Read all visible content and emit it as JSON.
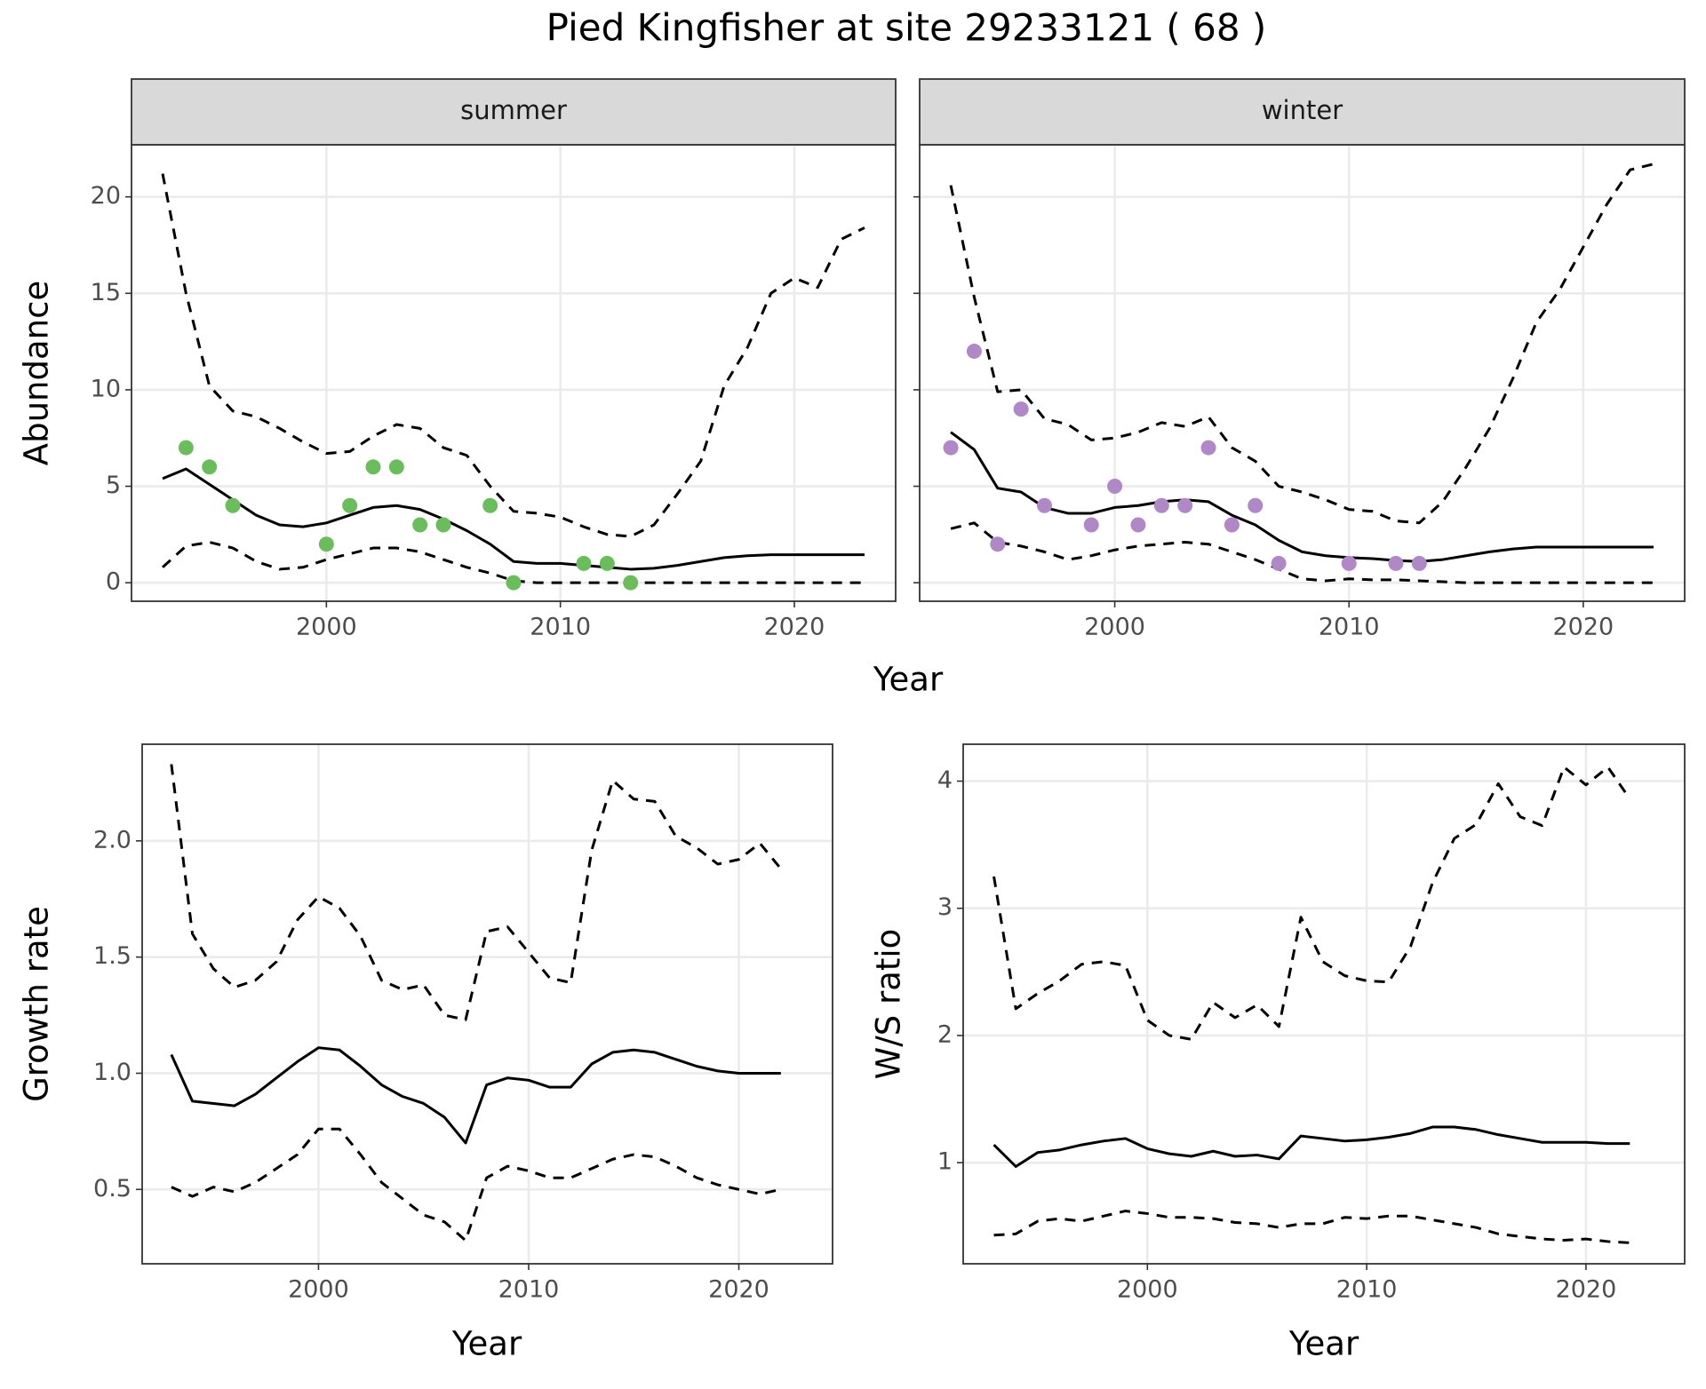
{
  "title": "Pied Kingfisher at site 29233121 ( 68 )",
  "chart_data": [
    {
      "type": "line",
      "facet": "summer",
      "xlabel": "Year",
      "ylabel": "Abundance",
      "x": [
        1993,
        1994,
        1995,
        1996,
        1997,
        1998,
        1999,
        2000,
        2001,
        2002,
        2003,
        2004,
        2005,
        2006,
        2007,
        2008,
        2009,
        2010,
        2011,
        2012,
        2013,
        2014,
        2015,
        2016,
        2017,
        2018,
        2019,
        2020,
        2021,
        2022,
        2023
      ],
      "xlim": [
        1991.67,
        2024.33
      ],
      "ylim": [
        -0.96,
        22.7
      ],
      "xticks": [
        2000,
        2010,
        2020
      ],
      "yticks": [
        0,
        5,
        10,
        15,
        20
      ],
      "grid": true,
      "series": [
        {
          "style": "dashed",
          "color": "#000000",
          "values": [
            21.2,
            15,
            10.2,
            8.9,
            8.6,
            8.0,
            7.3,
            6.7,
            6.8,
            7.6,
            8.2,
            8.0,
            7.0,
            6.6,
            5.0,
            3.7,
            3.6,
            3.4,
            2.9,
            2.5,
            2.4,
            3.0,
            4.6,
            6.3,
            10.2,
            12.2,
            15.0,
            15.8,
            15.3,
            17.8,
            18.4
          ]
        },
        {
          "style": "solid",
          "color": "#000000",
          "values": [
            5.4,
            5.9,
            5.1,
            4.3,
            3.5,
            3.0,
            2.9,
            3.1,
            3.5,
            3.9,
            4.0,
            3.8,
            3.3,
            2.7,
            2.0,
            1.1,
            1.0,
            1.0,
            0.9,
            0.8,
            0.7,
            0.75,
            0.9,
            1.1,
            1.3,
            1.4,
            1.45,
            1.45,
            1.45,
            1.45,
            1.45
          ]
        },
        {
          "style": "dashed",
          "color": "#000000",
          "values": [
            0.8,
            1.9,
            2.1,
            1.8,
            1.1,
            0.7,
            0.8,
            1.2,
            1.5,
            1.8,
            1.8,
            1.6,
            1.2,
            0.8,
            0.5,
            0.1,
            0,
            0,
            0,
            0,
            0,
            0,
            0,
            0,
            0,
            0,
            0,
            0,
            0,
            0,
            0
          ]
        },
        {
          "style": "point",
          "color": "#6abd5b",
          "x": [
            1994,
            1995,
            1996,
            2000,
            2001,
            2002,
            2003,
            2004,
            2005,
            2007,
            2008,
            2011,
            2012,
            2013
          ],
          "values": [
            7,
            6,
            4,
            2,
            4,
            6,
            6,
            3,
            3,
            4,
            0,
            1,
            1,
            0
          ]
        }
      ]
    },
    {
      "type": "line",
      "facet": "winter",
      "x": [
        1993,
        1994,
        1995,
        1996,
        1997,
        1998,
        1999,
        2000,
        2001,
        2002,
        2003,
        2004,
        2005,
        2006,
        2007,
        2008,
        2009,
        2010,
        2011,
        2012,
        2013,
        2014,
        2015,
        2016,
        2017,
        2018,
        2019,
        2020,
        2021,
        2022,
        2023
      ],
      "xlim": [
        1991.67,
        2024.33
      ],
      "ylim": [
        -0.96,
        22.7
      ],
      "xticks": [
        2000,
        2010,
        2020
      ],
      "yticks": [
        0,
        5,
        10,
        15,
        20
      ],
      "ytick_labels": false,
      "grid": true,
      "series": [
        {
          "style": "dashed",
          "color": "#000000",
          "values": [
            20.6,
            14.8,
            9.9,
            10.0,
            8.5,
            8.2,
            7.4,
            7.5,
            7.8,
            8.3,
            8.1,
            8.6,
            7.0,
            6.3,
            5.0,
            4.7,
            4.3,
            3.8,
            3.7,
            3.2,
            3.1,
            4.2,
            6.0,
            8.0,
            10.6,
            13.5,
            15.2,
            17.4,
            19.6,
            21.4,
            21.7
          ]
        },
        {
          "style": "solid",
          "color": "#000000",
          "values": [
            7.8,
            6.9,
            4.9,
            4.7,
            3.9,
            3.6,
            3.6,
            3.9,
            4.0,
            4.2,
            4.3,
            4.2,
            3.5,
            3.0,
            2.2,
            1.6,
            1.4,
            1.3,
            1.25,
            1.15,
            1.1,
            1.2,
            1.4,
            1.6,
            1.75,
            1.85,
            1.85,
            1.85,
            1.85,
            1.85,
            1.85
          ]
        },
        {
          "style": "dashed",
          "color": "#000000",
          "values": [
            2.8,
            3.1,
            2.1,
            1.9,
            1.6,
            1.2,
            1.4,
            1.7,
            1.9,
            2.0,
            2.1,
            2.0,
            1.6,
            1.2,
            0.7,
            0.2,
            0.1,
            0.2,
            0.15,
            0.15,
            0.1,
            0.05,
            0,
            0,
            0,
            0,
            0,
            0,
            0,
            0,
            0
          ]
        },
        {
          "style": "point",
          "color": "#b088c8",
          "x": [
            1993,
            1994,
            1995,
            1996,
            1997,
            1999,
            2000,
            2001,
            2002,
            2003,
            2004,
            2005,
            2006,
            2007,
            2010,
            2012,
            2013
          ],
          "values": [
            7,
            12,
            2,
            9,
            4,
            3,
            5,
            3,
            4,
            4,
            7,
            3,
            4,
            1,
            1,
            1,
            1
          ]
        }
      ]
    },
    {
      "type": "line",
      "xlabel": "Year",
      "ylabel": "Growth rate",
      "x": [
        1993,
        1994,
        1995,
        1996,
        1997,
        1998,
        1999,
        2000,
        2001,
        2002,
        2003,
        2004,
        2005,
        2006,
        2007,
        2008,
        2009,
        2010,
        2011,
        2012,
        2013,
        2014,
        2015,
        2016,
        2017,
        2018,
        2019,
        2020,
        2021,
        2022
      ],
      "xlim": [
        1991.61,
        2024.46
      ],
      "ylim": [
        0.18,
        2.416
      ],
      "xticks": [
        2000,
        2010,
        2020
      ],
      "yticks": [
        0.5,
        {
          "value": 1,
          "label": "1.0"
        },
        1.5,
        {
          "value": 2,
          "label": "2.0"
        }
      ],
      "grid": true,
      "series": [
        {
          "style": "dashed",
          "color": "#000000",
          "values": [
            2.33,
            1.6,
            1.45,
            1.37,
            1.4,
            1.48,
            1.66,
            1.76,
            1.71,
            1.59,
            1.4,
            1.36,
            1.38,
            1.25,
            1.23,
            1.61,
            1.63,
            1.52,
            1.41,
            1.39,
            1.96,
            2.26,
            2.18,
            2.17,
            2.02,
            1.97,
            1.9,
            1.92,
            1.99,
            1.88
          ]
        },
        {
          "style": "solid",
          "color": "#000000",
          "values": [
            1.08,
            0.88,
            0.87,
            0.86,
            0.91,
            0.98,
            1.05,
            1.11,
            1.1,
            1.03,
            0.95,
            0.9,
            0.87,
            0.81,
            0.7,
            0.95,
            0.98,
            0.97,
            0.94,
            0.94,
            1.04,
            1.09,
            1.1,
            1.09,
            1.06,
            1.03,
            1.01,
            1.0,
            1.0,
            1.0
          ]
        },
        {
          "style": "dashed",
          "color": "#000000",
          "values": [
            0.51,
            0.47,
            0.51,
            0.49,
            0.53,
            0.59,
            0.65,
            0.76,
            0.76,
            0.65,
            0.53,
            0.46,
            0.39,
            0.36,
            0.28,
            0.55,
            0.6,
            0.58,
            0.55,
            0.55,
            0.59,
            0.63,
            0.65,
            0.64,
            0.6,
            0.55,
            0.52,
            0.5,
            0.48,
            0.5
          ]
        }
      ]
    },
    {
      "type": "line",
      "xlabel": "Year",
      "ylabel": "W/S ratio",
      "x": [
        1993,
        1994,
        1995,
        1996,
        1997,
        1998,
        1999,
        2000,
        2001,
        2002,
        2003,
        2004,
        2005,
        2006,
        2007,
        2008,
        2009,
        2010,
        2011,
        2012,
        2013,
        2014,
        2015,
        2016,
        2017,
        2018,
        2019,
        2020,
        2021,
        2022
      ],
      "xlim": [
        1991.6,
        2024.5
      ],
      "ylim": [
        0.205,
        4.29
      ],
      "xticks": [
        2000,
        2010,
        2020
      ],
      "yticks": [
        1,
        2,
        3,
        4
      ],
      "grid": true,
      "series": [
        {
          "style": "dashed",
          "color": "#000000",
          "values": [
            3.25,
            2.21,
            2.33,
            2.43,
            2.56,
            2.58,
            2.55,
            2.12,
            2.0,
            1.97,
            2.26,
            2.14,
            2.24,
            2.07,
            2.93,
            2.58,
            2.47,
            2.43,
            2.42,
            2.7,
            3.2,
            3.55,
            3.66,
            3.98,
            3.72,
            3.65,
            4.11,
            3.97,
            4.11,
            3.86
          ]
        },
        {
          "style": "solid",
          "color": "#000000",
          "values": [
            1.14,
            0.97,
            1.08,
            1.1,
            1.14,
            1.17,
            1.19,
            1.11,
            1.07,
            1.05,
            1.09,
            1.05,
            1.06,
            1.03,
            1.21,
            1.19,
            1.17,
            1.18,
            1.2,
            1.23,
            1.28,
            1.28,
            1.26,
            1.22,
            1.19,
            1.16,
            1.16,
            1.16,
            1.15,
            1.15
          ]
        },
        {
          "style": "dashed",
          "color": "#000000",
          "values": [
            0.43,
            0.44,
            0.54,
            0.56,
            0.54,
            0.58,
            0.62,
            0.6,
            0.57,
            0.57,
            0.56,
            0.53,
            0.52,
            0.49,
            0.52,
            0.52,
            0.57,
            0.56,
            0.58,
            0.58,
            0.55,
            0.52,
            0.49,
            0.44,
            0.42,
            0.4,
            0.39,
            0.4,
            0.38,
            0.37
          ]
        }
      ]
    }
  ]
}
